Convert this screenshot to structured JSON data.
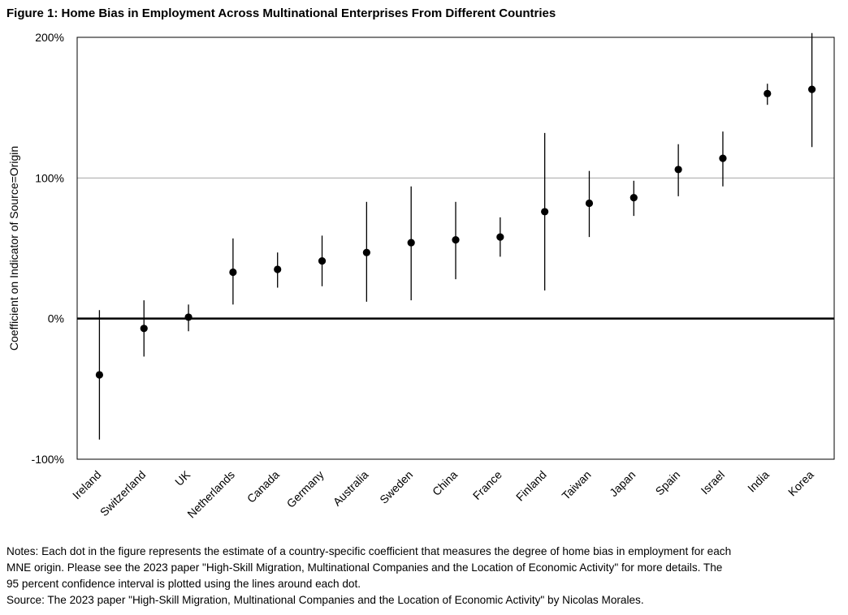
{
  "chart_data": {
    "type": "scatter",
    "title": "Figure 1: Home Bias in Employment Across Multinational Enterprises From Different Countries",
    "xlabel": "",
    "ylabel": "Coefficient on Indicator of Source=Origin",
    "ylim": [
      -100,
      200
    ],
    "yticks": [
      -100,
      0,
      100,
      200
    ],
    "ytick_labels": [
      "-100%",
      "0%",
      "100%",
      "200%"
    ],
    "grid": true,
    "categories": [
      "Ireland",
      "Switzerland",
      "UK",
      "Netherlands",
      "Canada",
      "Germany",
      "Australia",
      "Sweden",
      "China",
      "France",
      "Finland",
      "Taiwan",
      "Japan",
      "Spain",
      "Israel",
      "India",
      "Korea"
    ],
    "values": [
      -40,
      -7,
      1,
      33,
      35,
      41,
      47,
      54,
      56,
      58,
      76,
      82,
      86,
      106,
      114,
      160,
      163
    ],
    "ci_low": [
      -86,
      -27,
      -9,
      10,
      22,
      23,
      12,
      13,
      28,
      44,
      20,
      58,
      73,
      87,
      94,
      152,
      122
    ],
    "ci_high": [
      6,
      13,
      10,
      57,
      47,
      59,
      83,
      94,
      83,
      72,
      132,
      105,
      98,
      124,
      133,
      167,
      203
    ]
  },
  "notes": {
    "line1": "Notes: Each dot in the figure represents the estimate of a country-specific coefficient that measures the degree of home bias in employment for each",
    "line2": "MNE origin. Please see the 2023 paper \"High-Skill Migration, Multinational Companies and the Location of Economic Activity\" for more details. The",
    "line3": "95 percent confidence interval is plotted using the lines around each dot.",
    "source": "Source: The 2023  paper \"High-Skill Migration, Multinational Companies and the Location of Economic Activity\" by Nicolas Morales."
  }
}
